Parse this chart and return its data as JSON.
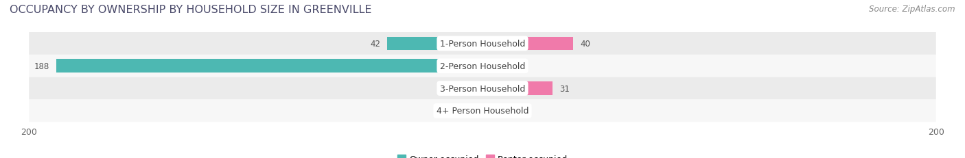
{
  "title": "OCCUPANCY BY OWNERSHIP BY HOUSEHOLD SIZE IN GREENVILLE",
  "source": "Source: ZipAtlas.com",
  "categories": [
    "1-Person Household",
    "2-Person Household",
    "3-Person Household",
    "4+ Person Household"
  ],
  "owner_values": [
    42,
    188,
    0,
    1
  ],
  "renter_values": [
    40,
    0,
    31,
    0
  ],
  "owner_color": "#4db8b2",
  "renter_color": "#f07aaa",
  "owner_color_light": "#a8dedd",
  "renter_color_light": "#f5b8d0",
  "row_bg_colors": [
    "#ebebeb",
    "#f7f7f7",
    "#ebebeb",
    "#f7f7f7"
  ],
  "axis_max": 200,
  "title_fontsize": 11.5,
  "source_fontsize": 8.5,
  "label_fontsize": 9,
  "value_fontsize": 8.5,
  "tick_fontsize": 9,
  "title_color": "#4a4a6a",
  "source_color": "#888888",
  "value_color": "#555555",
  "cat_label_color": "#444444"
}
